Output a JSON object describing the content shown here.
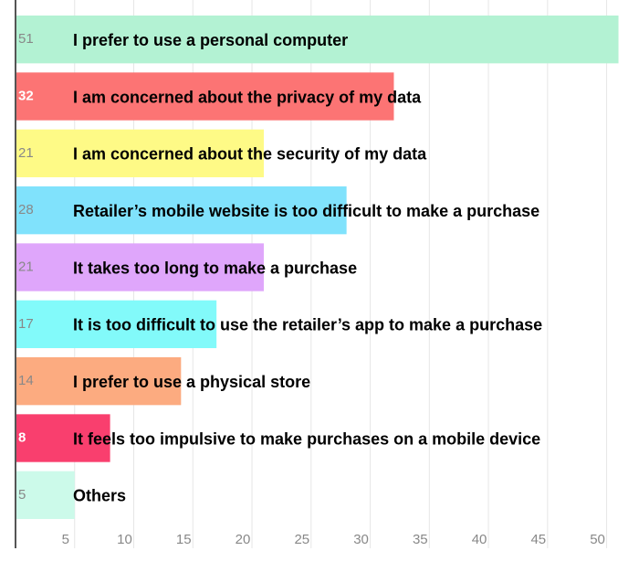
{
  "chart_data": {
    "type": "hbar",
    "categories": [
      "I prefer to use a personal computer",
      "I am concerned about the privacy of my data",
      "I am concerned about the security of my data",
      "Retailer’s mobile website is too difficult to make a purchase",
      "It takes too long to make a purchase",
      "It is too difficult to use the retailer’s app to make a purchase",
      "I prefer to use a physical store",
      "It feels too impulsive to make purchases on a mobile device",
      "Others"
    ],
    "values": [
      51,
      32,
      21,
      28,
      21,
      17,
      14,
      8,
      5
    ],
    "colors": [
      "#b3f2d3",
      "#fc7474",
      "#fefa86",
      "#80e2fc",
      "#dfa6fb",
      "#82fafa",
      "#fcab80",
      "#f93f6e",
      "#ccfaea"
    ],
    "value_label_colors": [
      "#888888",
      "#ffffff",
      "#888888",
      "#888888",
      "#888888",
      "#888888",
      "#888888",
      "#ffffff",
      "#888888"
    ],
    "xlim": [
      0,
      51.5
    ],
    "xticks": [
      5,
      10,
      15,
      20,
      25,
      30,
      35,
      40,
      45,
      50
    ],
    "grid": true
  }
}
